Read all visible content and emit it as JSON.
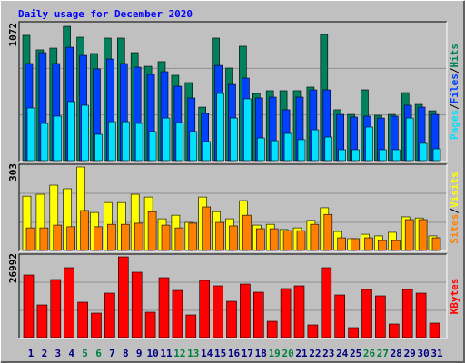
{
  "chart_data": [
    {
      "type": "bar",
      "title": "Daily usage for December 2020",
      "title_color": "#0000ff",
      "ylim": [
        0,
        1072
      ],
      "yticks": [
        1072
      ],
      "legend_separator": "/",
      "series": [
        {
          "name": "Hits",
          "color": "#00805c",
          "values": [
            1000,
            884,
            898,
            1072,
            985,
            855,
            978,
            978,
            862,
            753,
            790,
            681,
            623,
            427,
            978,
            739,
            913,
            536,
            558,
            558,
            558,
            587,
            1007,
            406,
            369,
            565,
            362,
            369,
            543,
            449,
            398
          ]
        },
        {
          "name": "Files",
          "color": "#0040ff",
          "values": [
            775,
            862,
            775,
            905,
            840,
            732,
            811,
            775,
            746,
            688,
            710,
            594,
            500,
            377,
            760,
            608,
            659,
            500,
            507,
            406,
            507,
            565,
            565,
            369,
            348,
            355,
            340,
            355,
            442,
            427,
            369
          ]
        },
        {
          "name": "Pages",
          "color": "#00e0ff",
          "values": [
            420,
            297,
            355,
            471,
            442,
            210,
            311,
            311,
            297,
            232,
            340,
            304,
            232,
            152,
            536,
            340,
            493,
            181,
            159,
            217,
            167,
            246,
            188,
            87,
            87,
            268,
            87,
            87,
            340,
            138,
            94
          ]
        }
      ]
    },
    {
      "type": "bar",
      "ylim": [
        0,
        303
      ],
      "yticks": [
        303
      ],
      "legend_separator": "/",
      "series": [
        {
          "name": "Visits",
          "color": "#ffff00",
          "values": [
            197,
            204,
            237,
            224,
            303,
            138,
            174,
            174,
            204,
            194,
            115,
            128,
            102,
            194,
            141,
            115,
            181,
            92,
            95,
            76,
            82,
            109,
            155,
            69,
            43,
            59,
            53,
            66,
            122,
            118,
            53
          ]
        },
        {
          "name": "Sites",
          "color": "#ff8000",
          "values": [
            82,
            82,
            92,
            86,
            145,
            86,
            95,
            95,
            99,
            141,
            92,
            82,
            99,
            158,
            102,
            89,
            128,
            79,
            79,
            72,
            72,
            95,
            131,
            46,
            43,
            46,
            36,
            36,
            112,
            112,
            46
          ]
        }
      ]
    },
    {
      "type": "bar",
      "ylim": [
        0,
        26992
      ],
      "yticks": [
        26992
      ],
      "categories": [
        1,
        2,
        3,
        4,
        5,
        6,
        7,
        8,
        9,
        10,
        11,
        12,
        13,
        14,
        15,
        16,
        17,
        18,
        19,
        20,
        21,
        22,
        23,
        24,
        25,
        26,
        27,
        28,
        29,
        30,
        31
      ],
      "category_colors": [
        "#000080",
        "#000080",
        "#000080",
        "#000080",
        "#008040",
        "#008040",
        "#000080",
        "#000080",
        "#000080",
        "#000080",
        "#000080",
        "#008040",
        "#008040",
        "#000080",
        "#000080",
        "#000080",
        "#000080",
        "#000080",
        "#008040",
        "#008040",
        "#000080",
        "#000080",
        "#000080",
        "#000080",
        "#000080",
        "#008040",
        "#008040",
        "#000080",
        "#000080",
        "#000080",
        "#000080"
      ],
      "series": [
        {
          "name": "KBytes",
          "color": "#ff0000",
          "values": [
            20928,
            10919,
            19411,
            23354,
            11828,
            8189,
            14862,
            26992,
            21838,
            8492,
            20018,
            15771,
            7583,
            19108,
            17288,
            12132,
            17895,
            15165,
            5459,
            16378,
            17288,
            4246,
            23354,
            14255,
            3336,
            16075,
            13952,
            4549,
            16075,
            14862,
            4853
          ]
        }
      ]
    }
  ]
}
